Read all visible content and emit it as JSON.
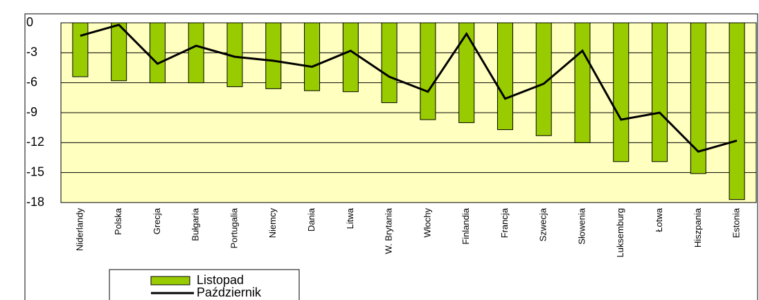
{
  "chart_data": {
    "type": "bar",
    "categories": [
      "Niderlandy",
      "Polska",
      "Grecja",
      "Bułgaria",
      "Portugalia",
      "Niemcy",
      "Dania",
      "Litwa",
      "W. Brytania",
      "Włochy",
      "Finlandia",
      "Francja",
      "Szwecja",
      "Słowenia",
      "Luksemburg",
      "Łotwa",
      "Hiszpania",
      "Estonia"
    ],
    "series": [
      {
        "name": "Listopad",
        "type": "bar",
        "color": "#99cc00",
        "values": [
          -5.4,
          -5.8,
          -6.0,
          -6.0,
          -6.4,
          -6.6,
          -6.8,
          -6.9,
          -8.0,
          -9.7,
          -10.0,
          -10.7,
          -11.3,
          -12.0,
          -13.9,
          -13.9,
          -15.1,
          -17.7
        ]
      },
      {
        "name": "Październik",
        "type": "line",
        "color": "#000000",
        "values": [
          -1.3,
          -0.2,
          -4.1,
          -2.3,
          -3.4,
          -3.8,
          -4.4,
          -2.8,
          -5.4,
          -6.9,
          -1.1,
          -7.6,
          -6.1,
          -2.8,
          -9.7,
          -9.0,
          -12.9,
          -11.8
        ]
      }
    ],
    "ylim": [
      -18,
      0
    ],
    "yticks": [
      0,
      -3,
      -6,
      -9,
      -12,
      -15,
      -18
    ],
    "grid": true
  }
}
